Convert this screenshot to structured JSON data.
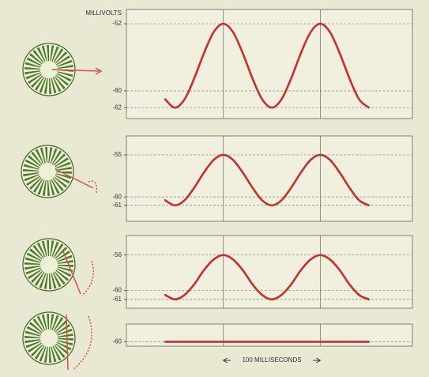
{
  "chart_data": [
    {
      "type": "line",
      "ylabel": "MILLIVOLTS",
      "xlim": [
        -100,
        195
      ],
      "xticks": [
        0,
        100
      ],
      "ylim": [
        -63.3,
        -50.3
      ],
      "yticks": [
        -52,
        -60,
        -62
      ],
      "grid": true,
      "x": [
        -60,
        -50,
        -40,
        -30,
        -20,
        -10,
        0,
        10,
        20,
        30,
        40,
        50,
        60,
        70,
        80,
        90,
        100,
        110,
        120,
        130,
        140,
        150
      ],
      "series": [
        {
          "color": "#c62f2b",
          "values": [
            -61,
            -62,
            -61,
            -58.5,
            -55.5,
            -53,
            -52,
            -53,
            -55.5,
            -58.5,
            -61,
            -62,
            -61,
            -58.5,
            -55.5,
            -53,
            -52,
            -53,
            -55.5,
            -58.5,
            -61,
            -62
          ]
        }
      ]
    },
    {
      "type": "line",
      "xlim": [
        -100,
        195
      ],
      "xticks": [
        0,
        100
      ],
      "ylim": [
        -62.9,
        -52.75
      ],
      "yticks": [
        -55,
        -60,
        -61
      ],
      "grid": true,
      "x": [
        -60,
        -50,
        -40,
        -30,
        -20,
        -10,
        0,
        10,
        20,
        30,
        40,
        50,
        60,
        70,
        80,
        90,
        100,
        110,
        120,
        130,
        140,
        150
      ],
      "series": [
        {
          "color": "#c62f2b",
          "values": [
            -60.4,
            -61,
            -60.4,
            -58.9,
            -57.1,
            -55.6,
            -55,
            -55.6,
            -57.1,
            -58.9,
            -60.4,
            -61,
            -60.4,
            -58.9,
            -57.1,
            -55.6,
            -55,
            -55.6,
            -57.1,
            -58.9,
            -60.4,
            -61
          ]
        }
      ]
    },
    {
      "type": "line",
      "xlim": [
        -100,
        195
      ],
      "xticks": [
        0,
        100
      ],
      "ylim": [
        -62,
        -53.8
      ],
      "yticks": [
        -56,
        -60,
        -61
      ],
      "grid": true,
      "x": [
        -60,
        -50,
        -40,
        -30,
        -20,
        -10,
        0,
        10,
        20,
        30,
        40,
        50,
        60,
        70,
        80,
        90,
        100,
        110,
        120,
        130,
        140,
        150
      ],
      "series": [
        {
          "color": "#c62f2b",
          "values": [
            -60.5,
            -61,
            -60.5,
            -59.3,
            -57.7,
            -56.5,
            -56,
            -56.5,
            -57.7,
            -59.3,
            -60.5,
            -61,
            -60.5,
            -59.3,
            -57.7,
            -56.5,
            -56,
            -56.5,
            -57.7,
            -59.3,
            -60.5,
            -61
          ]
        }
      ]
    },
    {
      "type": "line",
      "xlabel": "100 MILLISECONDS",
      "xlim": [
        -100,
        195
      ],
      "xticks": [
        0,
        100
      ],
      "ylim": [
        -60.5,
        -58
      ],
      "yticks": [
        -60
      ],
      "grid": true,
      "x": [
        -60,
        150
      ],
      "series": [
        {
          "color": "#c62f2b",
          "values": [
            -60,
            -60
          ]
        }
      ]
    }
  ]
}
